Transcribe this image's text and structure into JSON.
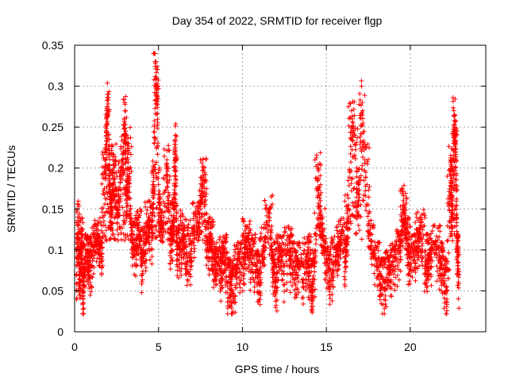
{
  "chart_data": {
    "type": "scatter",
    "title": "Day 354 of 2022, SRMTID for receiver flgp",
    "xlabel": "GPS time / hours",
    "ylabel": "SRMTID / TECUs",
    "xlim": [
      0,
      24.5
    ],
    "ylim": [
      0,
      0.35
    ],
    "x_ticks": [
      0,
      5,
      10,
      15,
      20
    ],
    "x_tick_labels": [
      "0",
      "5",
      "10",
      "15",
      "20"
    ],
    "y_ticks": [
      0,
      0.05,
      0.1,
      0.15,
      0.2,
      0.25,
      0.3,
      0.35
    ],
    "y_tick_labels": [
      "0",
      "0.05",
      "0.1",
      "0.15",
      "0.2",
      "0.25",
      "0.3",
      "0.35"
    ],
    "grid": true,
    "marker": "+",
    "marker_color": "#ff0000",
    "series": [
      {
        "name": "flgp",
        "points_summary": "dense scatter of ~2000 samples, ~0.3 h to 22.9 h",
        "x": [
          0.1,
          0.2,
          0.3,
          0.4,
          0.5,
          0.6,
          0.8,
          1.0,
          1.2,
          1.4,
          1.6,
          1.8,
          1.9,
          2.0,
          2.1,
          2.2,
          2.3,
          2.5,
          2.7,
          2.9,
          3.0,
          3.1,
          3.2,
          3.4,
          3.6,
          3.8,
          4.0,
          4.2,
          4.4,
          4.6,
          4.7,
          4.8,
          4.9,
          5.0,
          5.1,
          5.3,
          5.5,
          5.7,
          5.9,
          6.0,
          6.1,
          6.3,
          6.5,
          6.8,
          7.0,
          7.3,
          7.5,
          7.7,
          7.9,
          8.1,
          8.3,
          8.6,
          8.9,
          9.1,
          9.3,
          9.5,
          9.7,
          10.0,
          10.2,
          10.5,
          10.8,
          11.0,
          11.3,
          11.6,
          11.8,
          12.0,
          12.2,
          12.5,
          12.8,
          13.0,
          13.3,
          13.6,
          13.9,
          14.1,
          14.3,
          14.5,
          14.7,
          15.0,
          15.3,
          15.6,
          15.9,
          16.1,
          16.3,
          16.5,
          16.7,
          16.9,
          17.1,
          17.3,
          17.6,
          17.9,
          18.2,
          18.5,
          18.8,
          19.1,
          19.4,
          19.6,
          19.8,
          20.0,
          20.3,
          20.6,
          20.9,
          21.2,
          21.5,
          21.8,
          22.0,
          22.2,
          22.4,
          22.5,
          22.6,
          22.7,
          22.8,
          22.9
        ],
        "y": [
          0.07,
          0.14,
          0.06,
          0.12,
          0.04,
          0.09,
          0.1,
          0.08,
          0.11,
          0.12,
          0.09,
          0.2,
          0.26,
          0.29,
          0.18,
          0.16,
          0.21,
          0.15,
          0.19,
          0.22,
          0.27,
          0.17,
          0.23,
          0.12,
          0.1,
          0.13,
          0.09,
          0.11,
          0.14,
          0.12,
          0.2,
          0.33,
          0.31,
          0.18,
          0.15,
          0.13,
          0.21,
          0.12,
          0.14,
          0.24,
          0.11,
          0.1,
          0.13,
          0.07,
          0.12,
          0.14,
          0.16,
          0.2,
          0.1,
          0.12,
          0.09,
          0.08,
          0.1,
          0.06,
          0.07,
          0.04,
          0.09,
          0.08,
          0.12,
          0.1,
          0.08,
          0.07,
          0.11,
          0.15,
          0.09,
          0.06,
          0.1,
          0.08,
          0.11,
          0.07,
          0.09,
          0.06,
          0.1,
          0.05,
          0.08,
          0.2,
          0.14,
          0.09,
          0.07,
          0.1,
          0.12,
          0.09,
          0.15,
          0.27,
          0.24,
          0.16,
          0.3,
          0.21,
          0.12,
          0.09,
          0.07,
          0.06,
          0.08,
          0.09,
          0.11,
          0.16,
          0.12,
          0.09,
          0.1,
          0.13,
          0.08,
          0.1,
          0.11,
          0.09,
          0.07,
          0.05,
          0.21,
          0.16,
          0.27,
          0.24,
          0.1,
          0.07
        ]
      }
    ]
  }
}
